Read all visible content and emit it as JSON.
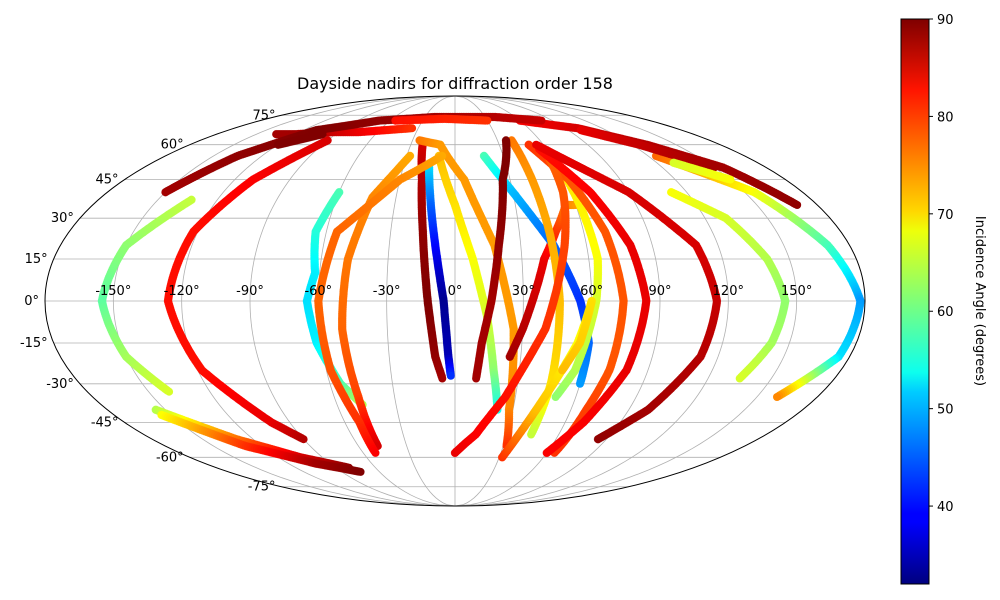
{
  "chart_data": {
    "type": "scatter",
    "projection": "mollweide",
    "title": "Dayside nadirs for diffraction order 158",
    "lon_tick_labels": [
      "-150°",
      "-120°",
      "-90°",
      "-60°",
      "-30°",
      "0°",
      "30°",
      "60°",
      "90°",
      "120°",
      "150°"
    ],
    "lat_tick_labels": [
      "-75°",
      "-60°",
      "-45°",
      "-30°",
      "-15°",
      "0°",
      "15°",
      "30°",
      "45°",
      "60°",
      "75°"
    ],
    "grid": true,
    "colorbar": {
      "label": "Incidence Angle (degrees)",
      "colormap": "jet",
      "range": [
        32,
        90
      ],
      "tick_labels": [
        "40",
        "50",
        "60",
        "70",
        "80",
        "90"
      ]
    },
    "series": [
      {
        "points": [
          [
            -133,
            37
          ],
          [
            -150,
            20
          ],
          [
            -155,
            0
          ],
          [
            -150,
            -20
          ],
          [
            -140,
            -33
          ]
        ],
        "incidence": [
          65,
          62,
          59,
          63,
          66
        ]
      },
      {
        "points": [
          [
            -135,
            65
          ],
          [
            -120,
            65
          ],
          [
            -95,
            66
          ],
          [
            -75,
            66
          ],
          [
            -55,
            67
          ],
          [
            -35,
            68
          ]
        ],
        "incidence": [
          88,
          88,
          86,
          84,
          82,
          80
        ]
      },
      {
        "points": [
          [
            -60,
            40
          ],
          [
            -65,
            25
          ],
          [
            -62,
            10
          ],
          [
            -65,
            0
          ],
          [
            -62,
            -15
          ],
          [
            -55,
            -30
          ],
          [
            -47,
            -38
          ]
        ],
        "incidence": [
          58,
          56,
          53,
          52,
          53,
          58,
          64
        ]
      },
      {
        "points": [
          [
            -90,
            62
          ],
          [
            -110,
            45
          ],
          [
            -122,
            25
          ],
          [
            -126,
            0
          ],
          [
            -118,
            -25
          ],
          [
            -100,
            -45
          ],
          [
            -90,
            -52
          ]
        ],
        "incidence": [
          85,
          83,
          82,
          82,
          82,
          84,
          87
        ]
      },
      {
        "points": [
          [
            -22,
            60
          ],
          [
            -18,
            45
          ],
          [
            -15,
            25
          ],
          [
            -12,
            0
          ],
          [
            -9,
            -20
          ],
          [
            -6,
            -28
          ]
        ],
        "incidence": [
          85,
          87,
          89,
          90,
          89,
          88
        ]
      },
      {
        "points": [
          [
            -15,
            50
          ],
          [
            -12,
            35
          ],
          [
            -8,
            15
          ],
          [
            -5,
            0
          ],
          [
            -3,
            -20
          ],
          [
            -2,
            -27
          ]
        ],
        "incidence": [
          52,
          45,
          38,
          33,
          35,
          42
        ]
      },
      {
        "points": [
          [
            -28,
            55
          ],
          [
            -42,
            38
          ],
          [
            -48,
            15
          ],
          [
            -50,
            -10
          ],
          [
            -48,
            -35
          ],
          [
            -48,
            -55
          ]
        ],
        "incidence": [
          73,
          75,
          76,
          77,
          79,
          85
        ]
      },
      {
        "points": [
          [
            -10,
            55
          ],
          [
            0,
            35
          ],
          [
            8,
            15
          ],
          [
            14,
            -5
          ],
          [
            18,
            -25
          ],
          [
            22,
            -40
          ]
        ],
        "incidence": [
          72,
          70,
          68,
          66,
          62,
          55
        ]
      },
      {
        "points": [
          [
            -25,
            62
          ],
          [
            -10,
            60
          ],
          [
            5,
            45
          ],
          [
            18,
            20
          ],
          [
            26,
            -10
          ],
          [
            28,
            -40
          ],
          [
            32,
            -55
          ]
        ],
        "incidence": [
          76,
          74,
          74,
          74,
          74,
          75,
          80
        ]
      },
      {
        "points": [
          [
            25,
            -20
          ],
          [
            30,
            -10
          ],
          [
            40,
            15
          ],
          [
            47,
            25
          ],
          [
            55,
            35
          ],
          [
            60,
            35
          ]
        ],
        "incidence": [
          88,
          87,
          84,
          80,
          76,
          74
        ]
      },
      {
        "points": [
          [
            18,
            55
          ],
          [
            30,
            40
          ],
          [
            45,
            20
          ],
          [
            55,
            0
          ],
          [
            60,
            -15
          ],
          [
            60,
            -30
          ]
        ],
        "incidence": [
          58,
          50,
          45,
          42,
          45,
          48
        ]
      },
      {
        "points": [
          [
            60,
            55
          ],
          [
            62,
            35
          ],
          [
            64,
            15
          ],
          [
            62,
            0
          ],
          [
            56,
            -25
          ],
          [
            50,
            -35
          ]
        ],
        "incidence": [
          70,
          69,
          68,
          66,
          64,
          62
        ]
      },
      {
        "points": [
          [
            40,
            62
          ],
          [
            42,
            45
          ],
          [
            44,
            25
          ],
          [
            46,
            0
          ],
          [
            46,
            -30
          ],
          [
            44,
            -50
          ]
        ],
        "incidence": [
          76,
          74,
          73,
          72,
          70,
          65
        ]
      },
      {
        "points": [
          [
            32,
            -60
          ],
          [
            42,
            -40
          ],
          [
            55,
            -15
          ],
          [
            60,
            0
          ],
          [
            56,
            -15
          ],
          [
            50,
            -25
          ]
        ],
        "incidence": [
          80,
          72,
          68,
          70,
          71,
          72
        ]
      },
      {
        "points": [
          [
            50,
            60
          ],
          [
            62,
            45
          ],
          [
            70,
            25
          ],
          [
            74,
            0
          ],
          [
            72,
            -25
          ],
          [
            68,
            -40
          ],
          [
            65,
            -58
          ]
        ],
        "incidence": [
          80,
          78,
          78,
          78,
          78,
          79,
          80
        ]
      },
      {
        "points": [
          [
            36,
            62
          ],
          [
            26,
            45
          ],
          [
            20,
            20
          ],
          [
            16,
            0
          ],
          [
            12,
            -15
          ],
          [
            10,
            -28
          ]
        ],
        "incidence": [
          90,
          90,
          89,
          88,
          88,
          88
        ]
      },
      {
        "points": [
          [
            0,
            -58
          ],
          [
            12,
            -50
          ],
          [
            25,
            -35
          ],
          [
            40,
            -10
          ],
          [
            50,
            20
          ],
          [
            56,
            40
          ],
          [
            58,
            58
          ]
        ],
        "incidence": [
          84,
          83,
          82,
          80,
          79,
          78,
          77
        ]
      },
      {
        "points": [
          [
            60,
            -58
          ],
          [
            70,
            -45
          ],
          [
            80,
            -25
          ],
          [
            84,
            0
          ],
          [
            80,
            20
          ],
          [
            70,
            40
          ],
          [
            55,
            58
          ]
        ],
        "incidence": [
          83,
          83,
          84,
          84,
          84,
          83,
          82
        ]
      },
      {
        "points": [
          [
            -8,
            55
          ],
          [
            -30,
            45
          ],
          [
            -55,
            25
          ],
          [
            -60,
            0
          ],
          [
            -58,
            -25
          ],
          [
            -52,
            -45
          ],
          [
            -52,
            -58
          ]
        ],
        "incidence": [
          73,
          75,
          77,
          77,
          78,
          80,
          83
        ]
      },
      {
        "points": [
          [
            85,
            -52
          ],
          [
            100,
            -40
          ],
          [
            112,
            -20
          ],
          [
            115,
            0
          ],
          [
            110,
            20
          ],
          [
            90,
            40
          ],
          [
            55,
            60
          ]
        ],
        "incidence": [
          89,
          88,
          87,
          86,
          85,
          85,
          84
        ]
      },
      {
        "points": [
          [
            112,
            40
          ],
          [
            130,
            30
          ],
          [
            140,
            15
          ],
          [
            145,
            0
          ],
          [
            142,
            -15
          ],
          [
            135,
            -28
          ]
        ],
        "incidence": [
          68,
          66,
          64,
          62,
          63,
          66
        ]
      },
      {
        "points": [
          [
            125,
            55
          ],
          [
            155,
            40
          ],
          [
            170,
            20
          ],
          [
            178,
            0
          ],
          [
            175,
            -20
          ],
          [
            160,
            -35
          ]
        ],
        "incidence": [
          77,
          68,
          58,
          48,
          52,
          75
        ]
      },
      {
        "points": [
          [
            60,
            72
          ],
          [
            100,
            68
          ],
          [
            130,
            60
          ],
          [
            155,
            50
          ],
          [
            170,
            35
          ]
        ],
        "incidence": [
          83,
          85,
          87,
          88,
          89
        ]
      },
      {
        "points": [
          [
            100,
            67
          ],
          [
            125,
            60
          ],
          [
            150,
            50
          ]
        ],
        "incidence": [
          84,
          86,
          88
        ]
      },
      {
        "points": [
          [
            -150,
            40
          ],
          [
            -135,
            55
          ],
          [
            -110,
            67
          ],
          [
            -70,
            72
          ],
          [
            -20,
            74
          ],
          [
            40,
            74
          ],
          [
            80,
            72
          ]
        ],
        "incidence": [
          88,
          89,
          90,
          89,
          88,
          87,
          86
        ]
      },
      {
        "points": [
          [
            -155,
            -40
          ],
          [
            -130,
            -52
          ],
          [
            -105,
            -60
          ],
          [
            -80,
            -65
          ]
        ],
        "incidence": [
          64,
          76,
          85,
          89
        ]
      },
      {
        "points": [
          [
            -155,
            -42
          ],
          [
            -130,
            -55
          ],
          [
            -100,
            -63
          ],
          [
            -75,
            -67
          ]
        ],
        "incidence": [
          68,
          80,
          88,
          90
        ]
      },
      {
        "points": [
          [
            -120,
            60
          ],
          [
            -100,
            65
          ]
        ],
        "incidence": [
          90,
          90
        ]
      },
      {
        "points": [
          [
            -55,
            72
          ],
          [
            -10,
            73
          ],
          [
            30,
            72
          ]
        ],
        "incidence": [
          82,
          81,
          80
        ]
      },
      {
        "points": [
          [
            130,
            52
          ],
          [
            150,
            45
          ]
        ],
        "incidence": [
          66,
          68
        ]
      }
    ]
  }
}
